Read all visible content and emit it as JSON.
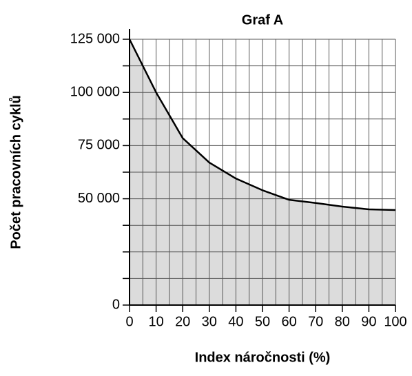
{
  "chart_data": {
    "type": "area",
    "title": "Graf A",
    "x_label": "Index náročnosti (%)",
    "y_label": "Počet pracovních cyklů",
    "x": [
      0,
      10,
      20,
      30,
      40,
      50,
      60,
      70,
      80,
      90,
      100
    ],
    "values": [
      125000,
      100000,
      78500,
      67000,
      59500,
      54000,
      49500,
      48000,
      46300,
      45000,
      44700
    ],
    "color": "#000000",
    "fill": "#dcdcdc",
    "xlim": [
      0,
      100
    ],
    "xticks": [
      0,
      10,
      20,
      30,
      40,
      50,
      60,
      70,
      80,
      90,
      100
    ],
    "x_minor_ticks": [
      5,
      15,
      25,
      35,
      45,
      55,
      65,
      75,
      85,
      95
    ],
    "ylim": [
      0,
      125000
    ],
    "yticks": [
      {
        "value": 0,
        "label": "0"
      },
      {
        "value": 50000,
        "label": "50 000"
      },
      {
        "value": 75000,
        "label": "75 000"
      },
      {
        "value": 100000,
        "label": "100 000"
      },
      {
        "value": 125000,
        "label": "125 000"
      }
    ],
    "y_minor_ticks": [
      12500,
      25000,
      37500,
      62500,
      87500,
      112500
    ],
    "grid": true
  }
}
